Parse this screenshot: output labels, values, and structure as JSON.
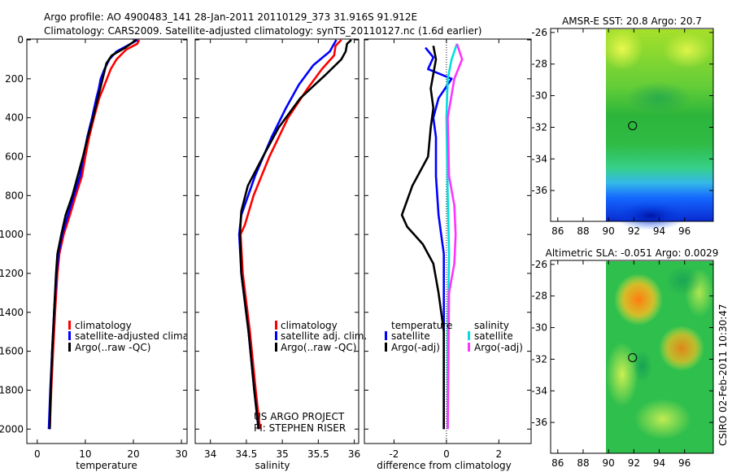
{
  "header": {
    "line1": "Argo profile: AO 4900483_141 28-Jan-2011 20110129_373 31.916S 91.912E",
    "line2": "Climatology: CARS2009. Satellite-adjusted climatology: synTS_20110127.nc (1.6d earlier)"
  },
  "colors": {
    "climatology": "#ff0000",
    "satellite": "#0000ff",
    "argo": "#000000",
    "satellite_salinity": "#00e0e0",
    "argo_salinity": "#ff33ff"
  },
  "chart_data": [
    {
      "type": "line",
      "id": "temperature",
      "xlabel": "temperature",
      "xlim": [
        -2,
        31
      ],
      "ylim": [
        0,
        2070
      ],
      "xticks": [
        "0",
        "10",
        "20",
        "30"
      ],
      "yticks": [
        "0",
        "200",
        "400",
        "600",
        "800",
        "1000",
        "1200",
        "1400",
        "1600",
        "1800",
        "2000"
      ],
      "legend": [
        "climatology",
        "satellite-adjusted climatology",
        "Argo(..raw -QC)"
      ],
      "series": [
        {
          "name": "climatology",
          "color": "#ff0000",
          "points": [
            [
              21.2,
              0
            ],
            [
              20.8,
              20
            ],
            [
              18.5,
              50
            ],
            [
              16.5,
              100
            ],
            [
              15.3,
              150
            ],
            [
              14.5,
              200
            ],
            [
              13.7,
              250
            ],
            [
              12.9,
              300
            ],
            [
              11.8,
              400
            ],
            [
              10.8,
              500
            ],
            [
              10.0,
              600
            ],
            [
              9.3,
              700
            ],
            [
              8.0,
              800
            ],
            [
              6.8,
              900
            ],
            [
              5.5,
              1000
            ],
            [
              4.6,
              1100
            ],
            [
              4.2,
              1200
            ],
            [
              3.7,
              1400
            ],
            [
              3.3,
              1600
            ],
            [
              2.9,
              1800
            ],
            [
              2.6,
              2000
            ]
          ]
        },
        {
          "name": "satellite-adjusted climatology",
          "color": "#0000ff",
          "points": [
            [
              20.9,
              0
            ],
            [
              18.7,
              30
            ],
            [
              16.5,
              60
            ],
            [
              15.0,
              100
            ],
            [
              14.0,
              150
            ],
            [
              13.2,
              200
            ],
            [
              12.8,
              250
            ],
            [
              12.3,
              300
            ],
            [
              11.4,
              400
            ],
            [
              10.4,
              500
            ],
            [
              9.6,
              600
            ],
            [
              8.9,
              700
            ],
            [
              7.6,
              800
            ],
            [
              6.4,
              900
            ],
            [
              5.2,
              1000
            ],
            [
              4.4,
              1100
            ],
            [
              4.0,
              1200
            ],
            [
              3.5,
              1400
            ],
            [
              3.1,
              1600
            ],
            [
              2.7,
              1800
            ],
            [
              2.4,
              2000
            ]
          ]
        },
        {
          "name": "Argo(..raw -QC)",
          "color": "#000000",
          "points": [
            [
              20.6,
              0
            ],
            [
              18.3,
              40
            ],
            [
              15.5,
              80
            ],
            [
              14.4,
              120
            ],
            [
              13.6,
              200
            ],
            [
              12.8,
              280
            ],
            [
              11.6,
              400
            ],
            [
              10.5,
              500
            ],
            [
              9.5,
              600
            ],
            [
              8.4,
              700
            ],
            [
              7.3,
              800
            ],
            [
              5.9,
              900
            ],
            [
              5.0,
              1000
            ],
            [
              4.2,
              1100
            ],
            [
              3.9,
              1200
            ],
            [
              3.5,
              1400
            ],
            [
              3.1,
              1600
            ],
            [
              2.8,
              1800
            ],
            [
              2.6,
              2000
            ]
          ]
        }
      ]
    },
    {
      "type": "line",
      "id": "salinity",
      "xlabel": "salinity",
      "xlim": [
        33.8,
        36.05
      ],
      "ylim": [
        0,
        2070
      ],
      "xticks": [
        "34",
        "34.5",
        "35",
        "35.5",
        "36"
      ],
      "legend": [
        "climatology",
        "satellite adj. clim.",
        "Argo(..raw -QC)"
      ],
      "annotation": [
        "US ARGO PROJECT",
        "PI: STEPHEN RISER"
      ],
      "series": [
        {
          "name": "climatology",
          "color": "#ff0000",
          "points": [
            [
              35.82,
              0
            ],
            [
              35.74,
              30
            ],
            [
              35.72,
              80
            ],
            [
              35.55,
              150
            ],
            [
              35.35,
              250
            ],
            [
              35.08,
              400
            ],
            [
              34.82,
              600
            ],
            [
              34.6,
              800
            ],
            [
              34.48,
              950
            ],
            [
              34.42,
              1000
            ],
            [
              34.45,
              1200
            ],
            [
              34.55,
              1500
            ],
            [
              34.63,
              1800
            ],
            [
              34.69,
              2000
            ]
          ]
        },
        {
          "name": "satellite adj. clim.",
          "color": "#0000ff",
          "points": [
            [
              35.75,
              0
            ],
            [
              35.66,
              60
            ],
            [
              35.43,
              130
            ],
            [
              35.23,
              230
            ],
            [
              35.05,
              350
            ],
            [
              34.85,
              500
            ],
            [
              34.62,
              700
            ],
            [
              34.43,
              900
            ],
            [
              34.4,
              1000
            ],
            [
              34.43,
              1200
            ],
            [
              34.53,
              1500
            ],
            [
              34.61,
              1800
            ],
            [
              34.67,
              2000
            ]
          ]
        },
        {
          "name": "Argo(..raw -QC)",
          "color": "#000000",
          "points": [
            [
              35.96,
              0
            ],
            [
              35.9,
              20
            ],
            [
              35.88,
              60
            ],
            [
              35.82,
              100
            ],
            [
              35.6,
              180
            ],
            [
              35.25,
              300
            ],
            [
              34.95,
              450
            ],
            [
              34.73,
              600
            ],
            [
              34.52,
              750
            ],
            [
              34.43,
              880
            ],
            [
              34.41,
              1000
            ],
            [
              34.43,
              1200
            ],
            [
              34.53,
              1500
            ],
            [
              34.61,
              1800
            ],
            [
              34.67,
              2000
            ]
          ]
        }
      ]
    },
    {
      "type": "line",
      "id": "difference",
      "xlabel": "difference from climatology",
      "xlim": [
        -3.1,
        3.2
      ],
      "ylim": [
        0,
        2070
      ],
      "xticks": [
        "-2",
        "0",
        "2"
      ],
      "legend_titles": [
        "temperature",
        "salinity"
      ],
      "legend": [
        "satellite",
        "Argo(-adj)",
        "satellite",
        "Argo(-adj)"
      ],
      "series": [
        {
          "name": "temperature satellite",
          "color": "#0000ff",
          "points": [
            [
              -0.8,
              40
            ],
            [
              -0.5,
              90
            ],
            [
              -0.7,
              150
            ],
            [
              0.2,
              200
            ],
            [
              -0.3,
              300
            ],
            [
              -0.5,
              400
            ],
            [
              -0.4,
              500
            ],
            [
              -0.4,
              700
            ],
            [
              -0.3,
              900
            ],
            [
              -0.2,
              1000
            ],
            [
              -0.1,
              1100
            ],
            [
              -0.1,
              1300
            ],
            [
              -0.1,
              2000
            ]
          ]
        },
        {
          "name": "temperature Argo(-adj)",
          "color": "#000000",
          "points": [
            [
              -0.5,
              30
            ],
            [
              -0.4,
              100
            ],
            [
              -0.6,
              250
            ],
            [
              -0.5,
              350
            ],
            [
              -0.6,
              450
            ],
            [
              -0.7,
              600
            ],
            [
              -1.3,
              750
            ],
            [
              -1.7,
              900
            ],
            [
              -1.5,
              960
            ],
            [
              -0.9,
              1050
            ],
            [
              -0.5,
              1150
            ],
            [
              -0.3,
              1300
            ],
            [
              -0.1,
              1500
            ],
            [
              -0.1,
              2000
            ]
          ]
        },
        {
          "name": "salinity satellite",
          "color": "#00e0e0",
          "points": [
            [
              0.4,
              20
            ],
            [
              0.2,
              100
            ],
            [
              0.05,
              200
            ],
            [
              0.0,
              400
            ],
            [
              0.05,
              800
            ],
            [
              0.1,
              1100
            ],
            [
              0.05,
              1500
            ],
            [
              0.05,
              2000
            ]
          ]
        },
        {
          "name": "salinity Argo(-adj)",
          "color": "#ff33ff",
          "points": [
            [
              0.4,
              20
            ],
            [
              0.6,
              100
            ],
            [
              0.3,
              200
            ],
            [
              0.05,
              400
            ],
            [
              0.1,
              700
            ],
            [
              0.3,
              850
            ],
            [
              0.35,
              1000
            ],
            [
              0.3,
              1150
            ],
            [
              0.1,
              1300
            ],
            [
              0.05,
              2000
            ]
          ]
        }
      ]
    },
    {
      "type": "heatmap",
      "id": "sst-map",
      "title": "AMSR-E SST: 20.8  Argo: 20.7",
      "xlim": [
        85.5,
        98.2
      ],
      "ylim": [
        -37.9,
        -25.8
      ],
      "xticks": [
        "86",
        "88",
        "90",
        "92",
        "94",
        "96"
      ],
      "yticks": [
        "-26",
        "-28",
        "-30",
        "-32",
        "-34",
        "-36"
      ],
      "marker": [
        91.9,
        -31.9
      ]
    },
    {
      "type": "heatmap",
      "id": "sla-map",
      "title": "Altimetric SLA: -0.051  Argo: 0.0029",
      "xlim": [
        85.5,
        98.2
      ],
      "ylim": [
        -37.9,
        -25.8
      ],
      "xticks": [
        "86",
        "88",
        "90",
        "92",
        "94",
        "96"
      ],
      "yticks": [
        "-26",
        "-28",
        "-30",
        "-32",
        "-34",
        "-36"
      ],
      "marker": [
        91.9,
        -31.9
      ]
    }
  ],
  "footer": {
    "stamp": "CSIRO 02-Feb-2011 10:30:47"
  }
}
